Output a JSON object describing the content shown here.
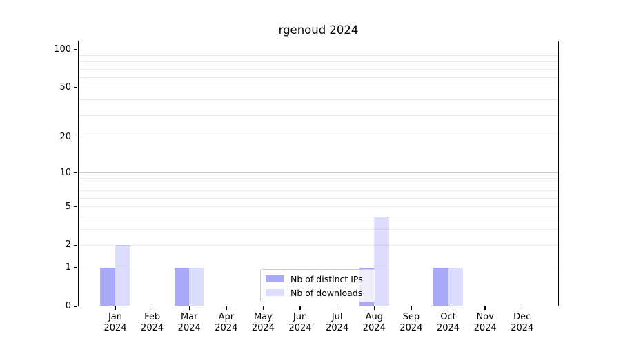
{
  "figure": {
    "title": "rgenoud 2024"
  },
  "chart_data": {
    "type": "bar",
    "title": "rgenoud 2024",
    "categories": [
      "Jan 2024",
      "Feb 2024",
      "Mar 2024",
      "Apr 2024",
      "May 2024",
      "Jun 2024",
      "Jul 2024",
      "Aug 2024",
      "Sep 2024",
      "Oct 2024",
      "Nov 2024",
      "Dec 2024"
    ],
    "x_tick_month_labels": [
      "Jan",
      "Feb",
      "Mar",
      "Apr",
      "May",
      "Jun",
      "Jul",
      "Aug",
      "Sep",
      "Oct",
      "Nov",
      "Dec"
    ],
    "x_tick_year_label": "2024",
    "series": [
      {
        "name": "Nb of distinct IPs",
        "color": "rgba(50,50,240,0.42)",
        "values": [
          1,
          0,
          1,
          0,
          0,
          0,
          0,
          1,
          0,
          1,
          0,
          0
        ]
      },
      {
        "name": "Nb of downloads",
        "color": "rgba(50,50,240,0.17)",
        "values": [
          2,
          0,
          1,
          0,
          0,
          0,
          0,
          4,
          0,
          1,
          0,
          0
        ]
      }
    ],
    "yscale": "log1p",
    "ylim": [
      0,
      110
    ],
    "y_tick_labels": [
      0,
      1,
      2,
      5,
      10,
      20,
      50,
      100
    ],
    "y_gridlines_major": [
      1,
      10,
      100
    ],
    "y_gridlines_minor": [
      2,
      3,
      4,
      5,
      6,
      7,
      8,
      9,
      20,
      30,
      40,
      50,
      60,
      70,
      80,
      90
    ],
    "grid": "horizontal",
    "legend_position": "lower center"
  },
  "colors": {
    "background": "#ffffff",
    "axis": "#000000",
    "grid_major": "#c8c8c8",
    "grid_minor": "#e9e9e9",
    "legend_border": "#cccccc",
    "bar_distinct_ips_rendered": "#a9a9f3",
    "bar_downloads_rendered": "#dcdcf9"
  }
}
